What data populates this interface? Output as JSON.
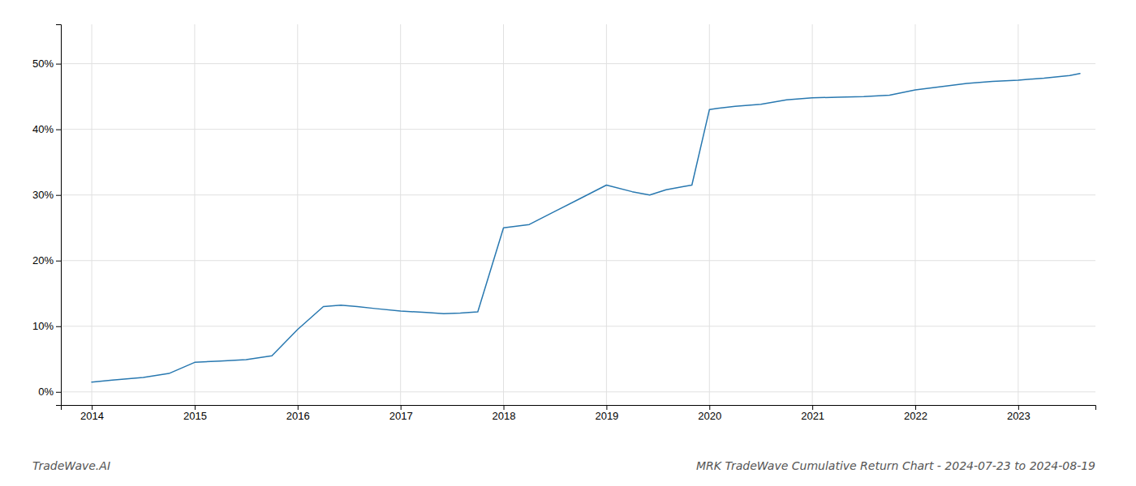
{
  "chart_data": {
    "type": "line",
    "title": "MRK TradeWave Cumulative Return Chart - 2024-07-23 to 2024-08-19",
    "annotations": [
      "TradeWave.AI"
    ],
    "color": "#2878b0",
    "grid": true,
    "x": [
      2014.0,
      2014.2,
      2014.5,
      2014.75,
      2015.0,
      2015.25,
      2015.5,
      2015.75,
      2016.0,
      2016.25,
      2016.42,
      2016.58,
      2016.75,
      2017.0,
      2017.25,
      2017.42,
      2017.58,
      2017.75,
      2018.0,
      2018.25,
      2018.5,
      2018.75,
      2019.0,
      2019.25,
      2019.42,
      2019.58,
      2019.75,
      2019.83,
      2020.0,
      2020.08,
      2020.25,
      2020.5,
      2020.75,
      2021.0,
      2021.25,
      2021.5,
      2021.75,
      2022.0,
      2022.25,
      2022.5,
      2022.75,
      2023.0,
      2023.25,
      2023.5,
      2023.6
    ],
    "values": [
      1.5,
      1.8,
      2.2,
      2.8,
      4.5,
      4.7,
      4.9,
      5.5,
      9.5,
      13.0,
      13.2,
      13.0,
      12.7,
      12.3,
      12.1,
      11.9,
      12.0,
      12.2,
      25.0,
      25.5,
      27.5,
      29.5,
      31.5,
      30.5,
      30.0,
      30.8,
      31.3,
      31.5,
      43.0,
      43.2,
      43.5,
      43.8,
      44.5,
      44.8,
      44.9,
      45.0,
      45.2,
      46.0,
      46.5,
      47.0,
      47.3,
      47.5,
      47.8,
      48.2,
      48.5
    ],
    "xlim": [
      2013.7,
      2023.75
    ],
    "ylim": [
      -2,
      56
    ],
    "xticks": [
      2014,
      2015,
      2016,
      2017,
      2018,
      2019,
      2020,
      2021,
      2022,
      2023
    ],
    "yticks": [
      {
        "value": 0,
        "label": "0%"
      },
      {
        "value": 10,
        "label": "10%"
      },
      {
        "value": 20,
        "label": "20%"
      },
      {
        "value": 30,
        "label": "30%"
      },
      {
        "value": 40,
        "label": "40%"
      },
      {
        "value": 50,
        "label": "50%"
      }
    ]
  }
}
